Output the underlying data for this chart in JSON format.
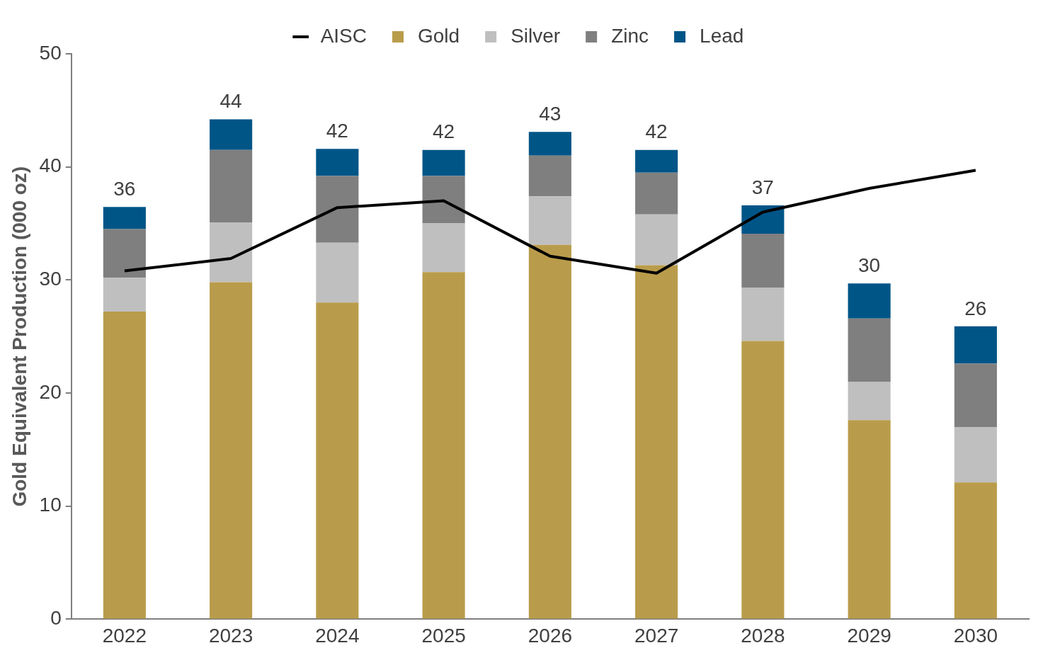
{
  "chart_data": {
    "type": "bar",
    "ylabel": "Gold Equivalent Production (000 oz)",
    "categories": [
      "2022",
      "2023",
      "2024",
      "2025",
      "2026",
      "2027",
      "2028",
      "2029",
      "2030"
    ],
    "stacked": true,
    "ylim": [
      0,
      50
    ],
    "yticks": [
      0,
      10,
      20,
      30,
      40,
      50
    ],
    "grid": false,
    "legend": "top",
    "totals": [
      "36",
      "44",
      "42",
      "42",
      "43",
      "42",
      "37",
      "30",
      "26"
    ],
    "series": [
      {
        "name": "Gold",
        "color": "#b99c4b",
        "values": [
          27.2,
          29.8,
          28.0,
          30.7,
          33.1,
          31.3,
          24.6,
          17.6,
          12.1
        ]
      },
      {
        "name": "Silver",
        "color": "#bfbfbf",
        "values": [
          3.0,
          5.3,
          5.3,
          4.3,
          4.3,
          4.5,
          4.7,
          3.4,
          4.9
        ]
      },
      {
        "name": "Zinc",
        "color": "#7f7f7f",
        "values": [
          4.3,
          6.4,
          5.9,
          4.2,
          3.6,
          3.7,
          4.8,
          5.6,
          5.6
        ]
      },
      {
        "name": "Lead",
        "color": "#005587",
        "values": [
          1.95,
          2.7,
          2.4,
          2.3,
          2.1,
          2.0,
          2.5,
          3.1,
          3.3
        ]
      },
      {
        "name": "AISC",
        "type": "line",
        "color": "#000000",
        "values": [
          30.8,
          31.9,
          36.4,
          37.0,
          32.1,
          30.6,
          36.0,
          38.1,
          39.7
        ]
      }
    ]
  }
}
